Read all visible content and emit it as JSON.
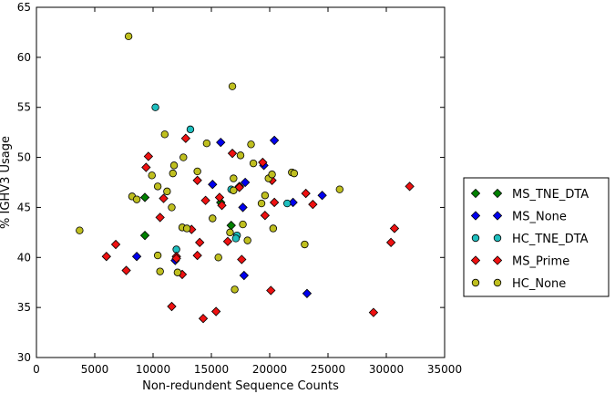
{
  "chart_data": {
    "type": "scatter",
    "title": "",
    "xlabel": "Non-redundent Sequence Counts",
    "ylabel": "% IGHV3 Usage",
    "xlim": [
      0,
      35000
    ],
    "ylim": [
      30,
      65
    ],
    "xticks": [
      0,
      5000,
      10000,
      15000,
      20000,
      25000,
      30000,
      35000
    ],
    "yticks": [
      30,
      35,
      40,
      45,
      50,
      55,
      60,
      65
    ],
    "grid": false,
    "legend_position": "right, outside plot",
    "series": [
      {
        "name": "MS_TNE_DTA",
        "marker": "diamond",
        "color": "#008000",
        "points": [
          [
            9300,
            46.0
          ],
          [
            9300,
            42.2
          ],
          [
            15800,
            45.5
          ],
          [
            16700,
            43.2
          ]
        ]
      },
      {
        "name": "MS_None",
        "marker": "diamond",
        "color": "#0000ee",
        "points": [
          [
            8600,
            40.1
          ],
          [
            11900,
            39.7
          ],
          [
            15100,
            47.3
          ],
          [
            15800,
            51.5
          ],
          [
            17700,
            45.0
          ],
          [
            17900,
            47.5
          ],
          [
            17800,
            38.2
          ],
          [
            19500,
            49.2
          ],
          [
            20400,
            51.7
          ],
          [
            22000,
            45.5
          ],
          [
            23200,
            36.4
          ],
          [
            24500,
            46.2
          ]
        ]
      },
      {
        "name": "HC_TNE_DTA",
        "marker": "circle",
        "color": "#1fbfbf",
        "points": [
          [
            10200,
            55.0
          ],
          [
            13200,
            52.8
          ],
          [
            12000,
            40.8
          ],
          [
            16700,
            46.8
          ],
          [
            17200,
            42.2
          ],
          [
            17100,
            41.9
          ],
          [
            21500,
            45.4
          ]
        ]
      },
      {
        "name": "MS_Prime",
        "marker": "diamond",
        "color": "#ee1111",
        "points": [
          [
            6000,
            40.1
          ],
          [
            6800,
            41.3
          ],
          [
            7700,
            38.7
          ],
          [
            9400,
            49.0
          ],
          [
            9600,
            50.1
          ],
          [
            10600,
            44.0
          ],
          [
            10900,
            45.9
          ],
          [
            11600,
            35.1
          ],
          [
            12000,
            40.1
          ],
          [
            12000,
            39.9
          ],
          [
            12500,
            38.3
          ],
          [
            12800,
            51.9
          ],
          [
            13300,
            42.8
          ],
          [
            13800,
            47.7
          ],
          [
            13800,
            40.2
          ],
          [
            14000,
            41.5
          ],
          [
            14300,
            33.9
          ],
          [
            14500,
            45.7
          ],
          [
            15400,
            34.6
          ],
          [
            15700,
            46.0
          ],
          [
            15900,
            45.2
          ],
          [
            16400,
            41.6
          ],
          [
            16800,
            50.4
          ],
          [
            17400,
            47.1
          ],
          [
            17400,
            47.0
          ],
          [
            17600,
            39.8
          ],
          [
            19400,
            49.5
          ],
          [
            19600,
            44.2
          ],
          [
            20100,
            36.7
          ],
          [
            20200,
            47.7
          ],
          [
            20400,
            45.5
          ],
          [
            23100,
            46.4
          ],
          [
            23700,
            45.3
          ],
          [
            28900,
            34.5
          ],
          [
            30400,
            41.5
          ],
          [
            30700,
            42.9
          ],
          [
            32000,
            47.1
          ]
        ]
      },
      {
        "name": "HC_None",
        "marker": "circle",
        "color": "#bfbf1f",
        "points": [
          [
            3700,
            42.7
          ],
          [
            7900,
            62.1
          ],
          [
            8200,
            46.1
          ],
          [
            8600,
            45.8
          ],
          [
            9900,
            48.2
          ],
          [
            10400,
            47.1
          ],
          [
            10400,
            40.2
          ],
          [
            10600,
            38.6
          ],
          [
            11000,
            52.3
          ],
          [
            11200,
            46.6
          ],
          [
            11600,
            45.0
          ],
          [
            11700,
            48.4
          ],
          [
            11800,
            49.2
          ],
          [
            12100,
            38.5
          ],
          [
            12600,
            50.0
          ],
          [
            12500,
            43.0
          ],
          [
            12900,
            42.9
          ],
          [
            13800,
            48.6
          ],
          [
            14600,
            51.4
          ],
          [
            15100,
            43.9
          ],
          [
            15600,
            40.0
          ],
          [
            16600,
            42.5
          ],
          [
            16800,
            57.1
          ],
          [
            16900,
            47.9
          ],
          [
            16900,
            46.7
          ],
          [
            17000,
            36.8
          ],
          [
            17500,
            50.2
          ],
          [
            17700,
            43.3
          ],
          [
            18100,
            41.7
          ],
          [
            18400,
            51.3
          ],
          [
            18600,
            49.4
          ],
          [
            19300,
            45.4
          ],
          [
            19600,
            46.2
          ],
          [
            19900,
            47.9
          ],
          [
            20200,
            48.3
          ],
          [
            20300,
            42.9
          ],
          [
            21900,
            48.5
          ],
          [
            22100,
            48.4
          ],
          [
            23000,
            41.3
          ],
          [
            26000,
            46.8
          ]
        ]
      }
    ]
  }
}
